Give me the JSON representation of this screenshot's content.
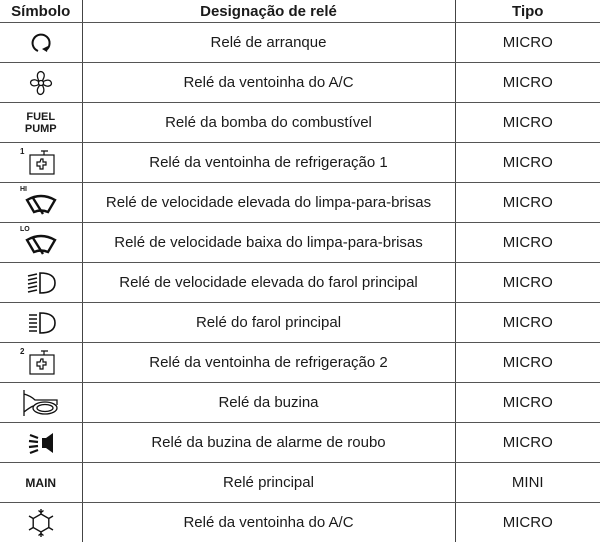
{
  "headers": {
    "symbol": "Símbolo",
    "designation": "Designação de relé",
    "type": "Tipo"
  },
  "rows": [
    {
      "icon": "rotation-arrow-icon",
      "designation": "Relé de arranque",
      "type": "MICRO"
    },
    {
      "icon": "fan-icon",
      "designation": "Relé da ventoinha do A/C",
      "type": "MICRO"
    },
    {
      "icon_text": "FUEL PUMP",
      "designation": "Relé da bomba do combustível",
      "type": "MICRO"
    },
    {
      "icon": "radiator-fan-icon",
      "icon_label": "1",
      "designation": "Relé da ventoinha de refrigeração 1",
      "type": "MICRO"
    },
    {
      "icon": "wiper-icon",
      "icon_label": "HI",
      "designation": "Relé de velocidade elevada do limpa-para-brisas",
      "type": "MICRO"
    },
    {
      "icon": "wiper-icon",
      "icon_label": "LO",
      "designation": "Relé de velocidade baixa do limpa-para-brisas",
      "type": "MICRO"
    },
    {
      "icon": "high-beam-icon",
      "designation": "Relé de velocidade elevada do farol principal",
      "type": "MICRO"
    },
    {
      "icon": "headlamp-icon",
      "designation": "Relé do farol principal",
      "type": "MICRO"
    },
    {
      "icon": "radiator-fan-icon",
      "icon_label": "2",
      "designation": "Relé da ventoinha de refrigeração 2",
      "type": "MICRO"
    },
    {
      "icon": "horn-icon",
      "designation": "Relé da buzina",
      "type": "MICRO"
    },
    {
      "icon": "alarm-siren-icon",
      "designation": "Relé da buzina de alarme de roubo",
      "type": "MICRO"
    },
    {
      "icon_text": "MAIN",
      "designation": "Relé principal",
      "type": "MINI"
    },
    {
      "icon": "snowflake-icon",
      "designation": "Relé da ventoinha do A/C",
      "type": "MICRO"
    }
  ]
}
